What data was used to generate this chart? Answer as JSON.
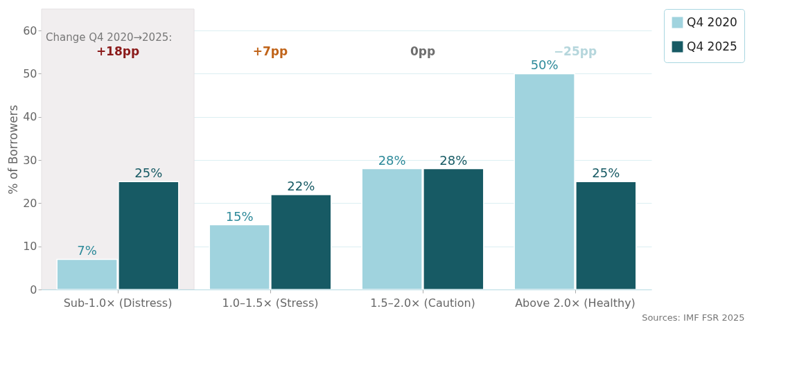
{
  "chart_data": {
    "type": "bar",
    "ylabel": "% of Borrowers",
    "categories": [
      "Sub-1.0× (Distress)",
      "1.0–1.5× (Stress)",
      "1.5–2.0× (Caution)",
      "Above 2.0× (Healthy)"
    ],
    "series": [
      {
        "name": "Q4 2020",
        "color": "#a0d3de",
        "values": [
          7,
          15,
          28,
          50
        ],
        "value_labels": [
          "7%",
          "15%",
          "28%",
          "50%"
        ]
      },
      {
        "name": "Q4 2025",
        "color": "#175a64",
        "values": [
          25,
          22,
          28,
          25
        ],
        "value_labels": [
          "25%",
          "22%",
          "28%",
          "25%"
        ]
      }
    ],
    "ylim": [
      0,
      65
    ],
    "yticks": [
      0,
      10,
      20,
      30,
      40,
      50,
      60
    ],
    "grid": "y",
    "legend": "right",
    "bands": [
      {
        "axis": "x",
        "from": "Sub-1.0× (Distress)",
        "to": "Sub-1.0× (Distress)",
        "color": "#f1eeef"
      }
    ],
    "annotations": [
      "Change Q4 2020→2025:",
      "+18pp",
      "+7pp",
      "0pp",
      "−25pp",
      "Sources: IMF FSR 2025"
    ]
  }
}
